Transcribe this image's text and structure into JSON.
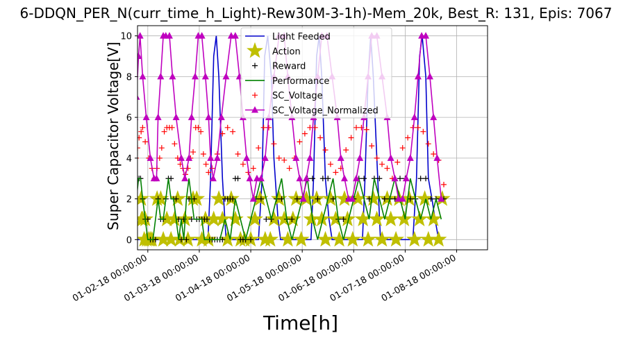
{
  "chart_data": {
    "type": "line",
    "title": "6-DDQN_PER_N(curr_time_h_Light)-Rew30M-3-1h)-Mem_20k, Best_R: 131, Epis: 7067",
    "xlabel": "Time[h]",
    "ylabel": "Super Capacitor Voltage[V]",
    "ylim": [
      -0.5,
      10.5
    ],
    "xlim": [
      0.8,
      7.6
    ],
    "grid": true,
    "legend_position": "top-center",
    "x_tick_values": [
      1,
      2,
      3,
      4,
      5,
      6,
      7
    ],
    "x_tick_labels": [
      "01-02-18 00:00:00",
      "01-03-18 00:00:00",
      "01-04-18 00:00:00",
      "01-05-18 00:00:00",
      "01-06-18 00:00:00",
      "01-07-18 00:00:00",
      "01-08-18 00:00:00"
    ],
    "y_tick_values": [
      0,
      2,
      4,
      6,
      8,
      10
    ],
    "y_tick_labels": [
      "0",
      "2",
      "4",
      "6",
      "8",
      "10"
    ],
    "series": [
      {
        "name": "Light Feeded",
        "color": "#0000cc",
        "marker": "none",
        "style": "line",
        "x": [
          0.5,
          0.53,
          0.56,
          0.6,
          0.67,
          0.7,
          0.78,
          0.85,
          1.2,
          1.26,
          1.33,
          1.37,
          1.43,
          1.52,
          1.58,
          1.62,
          1.67,
          1.7,
          1.77,
          2.17,
          2.22,
          2.28,
          2.33,
          2.38,
          2.45,
          2.52,
          2.58,
          2.67,
          2.73,
          3.15,
          3.22,
          3.27,
          3.33,
          3.4,
          3.45,
          3.53,
          3.58,
          3.67,
          3.72,
          4.17,
          4.22,
          4.28,
          4.33,
          4.38,
          4.45,
          4.52,
          4.58,
          4.67,
          4.72,
          5.17,
          5.22,
          5.28,
          5.33,
          5.38,
          5.45,
          5.52,
          5.58,
          5.67,
          5.72,
          6.15,
          6.22,
          6.28,
          6.33,
          6.4,
          6.45,
          6.52,
          6.58,
          6.65,
          6.7
        ],
        "y": [
          10,
          8,
          8,
          3,
          0,
          0,
          0,
          0,
          0,
          0,
          0,
          0,
          0,
          0,
          0,
          0,
          0,
          0,
          0,
          0,
          3,
          9,
          10,
          8,
          3,
          0,
          0,
          0,
          0,
          0,
          3,
          9,
          10,
          8,
          4,
          1,
          0,
          0,
          0,
          0,
          3,
          9,
          10,
          8,
          3,
          1,
          0,
          0,
          0,
          0,
          3,
          8,
          10,
          8,
          4,
          0,
          0,
          0,
          0,
          0,
          3,
          9,
          10,
          8,
          3,
          2,
          1,
          0,
          0
        ]
      },
      {
        "name": "Action",
        "color": "#bfbf00",
        "marker": "star",
        "style": "markers",
        "x": [
          0.87,
          0.88,
          0.9,
          0.93,
          0.95,
          0.98,
          1.02,
          1.05,
          1.08,
          1.18,
          1.25,
          1.3,
          1.37,
          1.45,
          1.52,
          1.58,
          1.62,
          1.72,
          1.78,
          1.88,
          1.95,
          2.05,
          2.12,
          2.18,
          2.28,
          2.38,
          2.45,
          2.55,
          2.62,
          2.7,
          2.8,
          2.88,
          3.0,
          3.08,
          3.18,
          3.28,
          3.38,
          3.45,
          3.55,
          3.65,
          3.72,
          3.82,
          3.88,
          3.98,
          4.08,
          4.18,
          4.28,
          4.38,
          4.45,
          4.55,
          4.65,
          4.72,
          4.82,
          4.88,
          4.98,
          5.08,
          5.18,
          5.28,
          5.38,
          5.45,
          5.55,
          5.65,
          5.72,
          5.82,
          5.88,
          5.98,
          6.08,
          6.18,
          6.28,
          6.38,
          6.45,
          6.55,
          6.65,
          6.72
        ],
        "y": [
          2,
          1,
          1,
          0,
          1,
          0,
          0,
          0,
          0,
          2,
          2,
          0,
          1,
          0,
          1,
          2,
          0,
          1,
          0,
          2,
          2,
          0,
          1,
          0,
          1,
          2,
          1,
          0,
          2,
          1,
          0,
          0,
          0,
          1,
          2,
          0,
          0,
          1,
          2,
          1,
          0,
          1,
          2,
          0,
          2,
          1,
          2,
          1,
          0,
          2,
          1,
          0,
          2,
          1,
          0,
          2,
          1,
          0,
          2,
          1,
          0,
          2,
          1,
          0,
          2,
          1,
          2,
          0,
          1,
          2,
          0,
          1,
          0,
          2
        ]
      },
      {
        "name": "Reward",
        "color": "#000000",
        "marker": "plus",
        "style": "markers",
        "x": [
          0.78,
          0.8,
          0.83,
          0.86,
          0.9,
          0.95,
          1.0,
          1.05,
          1.1,
          1.15,
          1.2,
          1.25,
          1.3,
          1.35,
          1.4,
          1.45,
          1.5,
          1.55,
          1.6,
          1.65,
          1.7,
          1.75,
          1.8,
          1.85,
          1.9,
          1.95,
          2.0,
          2.05,
          2.1,
          2.15,
          2.2,
          2.25,
          2.3,
          2.35,
          2.4,
          2.45,
          2.5,
          2.55,
          2.6,
          2.65,
          2.7,
          2.75,
          2.8,
          2.85,
          2.9,
          3.0,
          3.1,
          3.2,
          3.3,
          3.4,
          3.5,
          3.6,
          3.7,
          3.8,
          3.9,
          4.0,
          4.1,
          4.2,
          4.3,
          4.4,
          4.5,
          4.6,
          4.7,
          4.8,
          4.9,
          5.0,
          5.1,
          5.2,
          5.3,
          5.4,
          5.5,
          5.6,
          5.7,
          5.8,
          5.9,
          6.0,
          6.1,
          6.2,
          6.3,
          6.4,
          6.5,
          6.6,
          6.7,
          6.75
        ],
        "y": [
          3,
          3,
          3,
          3,
          2,
          1,
          1,
          0,
          0,
          0,
          2,
          1,
          1,
          2,
          3,
          3,
          2,
          2,
          1,
          0,
          1,
          0,
          2,
          1,
          2,
          1,
          1,
          1,
          1,
          1,
          0,
          0,
          0,
          0,
          0,
          0,
          2,
          2,
          2,
          2,
          3,
          3,
          0,
          0,
          0,
          0,
          2,
          2,
          1,
          1,
          2,
          2,
          1,
          1,
          2,
          2,
          3,
          3,
          2,
          3,
          3,
          2,
          1,
          1,
          2,
          2,
          3,
          3,
          2,
          3,
          3,
          2,
          2,
          2,
          3,
          3,
          2,
          2,
          3,
          3,
          2,
          2,
          2,
          2
        ]
      },
      {
        "name": "Performance",
        "color": "#008000",
        "marker": "none",
        "style": "line",
        "x": [
          0.78,
          0.82,
          0.86,
          0.9,
          0.95,
          1.0,
          1.05,
          1.1,
          1.15,
          1.2,
          1.25,
          1.3,
          1.35,
          1.4,
          1.45,
          1.5,
          1.55,
          1.6,
          1.65,
          1.7,
          1.75,
          1.8,
          1.85,
          1.9,
          1.95,
          2.0,
          2.05,
          2.1,
          2.15,
          2.2,
          2.3,
          2.4,
          2.5,
          2.6,
          2.7,
          2.8,
          2.9,
          3.0,
          3.1,
          3.2,
          3.3,
          3.4,
          3.5,
          3.6,
          3.7,
          3.8,
          3.9,
          4.0,
          4.1,
          4.2,
          4.3,
          4.4,
          4.5,
          4.6,
          4.7,
          4.8,
          4.9,
          5.0,
          5.1,
          5.2,
          5.3,
          5.4,
          5.5,
          5.6,
          5.7,
          5.8,
          5.9,
          6.0,
          6.1,
          6.2,
          6.3,
          6.4,
          6.5,
          6.6,
          6.7
        ],
        "y": [
          2,
          3,
          3,
          2,
          1,
          0,
          0,
          0,
          1,
          2,
          1,
          1,
          2,
          3,
          2,
          2,
          1,
          0,
          1,
          0,
          2,
          3,
          2,
          1,
          1,
          1,
          1,
          0,
          0,
          0,
          0,
          0,
          1,
          0,
          2,
          1,
          0,
          1,
          2,
          3,
          2,
          1,
          2,
          3,
          1,
          0,
          1,
          2,
          3,
          1,
          0,
          1,
          2,
          3,
          1,
          0,
          1,
          2,
          3,
          2,
          1,
          3,
          2,
          1,
          2,
          3,
          2,
          1,
          3,
          2,
          1,
          2,
          1,
          2,
          1
        ]
      },
      {
        "name": "SC_Voltage",
        "color": "#ff0000",
        "marker": "plus",
        "style": "markers",
        "x": [
          0.73,
          0.77,
          0.8,
          0.83,
          0.87,
          0.9,
          0.95,
          1.02,
          1.08,
          1.13,
          1.18,
          1.23,
          1.27,
          1.32,
          1.37,
          1.42,
          1.47,
          1.52,
          1.58,
          1.63,
          1.68,
          1.73,
          1.78,
          1.83,
          1.88,
          1.93,
          1.98,
          2.03,
          2.08,
          2.13,
          2.18,
          2.25,
          2.35,
          2.45,
          2.55,
          2.65,
          2.75,
          2.85,
          2.95,
          3.05,
          3.15,
          3.25,
          3.35,
          3.45,
          3.55,
          3.65,
          3.75,
          3.85,
          3.95,
          4.05,
          4.15,
          4.25,
          4.35,
          4.45,
          4.55,
          4.65,
          4.75,
          4.85,
          4.95,
          5.05,
          5.15,
          5.25,
          5.35,
          5.45,
          5.55,
          5.65,
          5.75,
          5.85,
          5.95,
          6.05,
          6.15,
          6.25,
          6.35,
          6.45,
          6.55,
          6.65,
          6.75
        ],
        "y": [
          3.5,
          4,
          4.5,
          5,
          5.3,
          5.5,
          4.8,
          4,
          3.5,
          3,
          3.5,
          4,
          4.5,
          5.3,
          5.5,
          5.5,
          5.5,
          4.7,
          4,
          3.7,
          3.5,
          3.2,
          3.5,
          4,
          4.3,
          5.5,
          5.5,
          5.3,
          4.2,
          3.7,
          3.3,
          3.5,
          4.2,
          5.2,
          5.5,
          5.3,
          4.2,
          3.7,
          3.3,
          3.5,
          4.5,
          5.5,
          5.5,
          4.7,
          4.0,
          3.9,
          3.5,
          4.0,
          4.8,
          5.2,
          5.5,
          5.5,
          5.0,
          4.4,
          3.7,
          3.3,
          3.5,
          4.4,
          5.0,
          5.5,
          5.5,
          5.4,
          4.6,
          4.0,
          3.7,
          3.5,
          3.0,
          3.8,
          4.5,
          5.0,
          5.5,
          5.5,
          5.3,
          4.7,
          4.2,
          3.9,
          2.7
        ]
      },
      {
        "name": "SC_Voltage_Normalized",
        "color": "#bf00bf",
        "marker": "triangle",
        "style": "line+markers",
        "x": [
          0.72,
          0.75,
          0.78,
          0.82,
          0.85,
          0.9,
          0.97,
          1.05,
          1.12,
          1.17,
          1.2,
          1.25,
          1.3,
          1.35,
          1.42,
          1.48,
          1.55,
          1.65,
          1.72,
          1.8,
          1.85,
          1.92,
          1.98,
          2.05,
          2.12,
          2.18,
          2.22,
          2.27,
          2.35,
          2.43,
          2.52,
          2.62,
          2.7,
          2.78,
          2.85,
          2.92,
          2.98,
          3.05,
          3.12,
          3.2,
          3.28,
          3.35,
          3.45,
          3.55,
          3.65,
          3.72,
          3.8,
          3.88,
          3.95,
          4.02,
          4.08,
          4.15,
          4.22,
          4.3,
          4.38,
          4.48,
          4.58,
          4.68,
          4.75,
          4.82,
          4.9,
          4.97,
          5.05,
          5.12,
          5.2,
          5.28,
          5.35,
          5.45,
          5.55,
          5.65,
          5.72,
          5.8,
          5.87,
          5.95,
          6.02,
          6.1,
          6.18,
          6.25,
          6.32,
          6.4,
          6.48,
          6.55,
          6.62,
          6.7
        ],
        "y": [
          4,
          6,
          7,
          9,
          10,
          8,
          6,
          4,
          3,
          3,
          6,
          8,
          10,
          10,
          10,
          8,
          6,
          4,
          3,
          4,
          6,
          8,
          10,
          10,
          8,
          6,
          4,
          3,
          4,
          6,
          8,
          10,
          10,
          8,
          6,
          4,
          3,
          2,
          3,
          3,
          4,
          6,
          8,
          10,
          10,
          8,
          6,
          4,
          3,
          2,
          3,
          4,
          6,
          8,
          10,
          10,
          8,
          6,
          4,
          3,
          2,
          2,
          3,
          4,
          6,
          8,
          10,
          10,
          8,
          6,
          4,
          3,
          2,
          2,
          3,
          4,
          6,
          8,
          10,
          10,
          8,
          6,
          4,
          2
        ]
      }
    ]
  }
}
